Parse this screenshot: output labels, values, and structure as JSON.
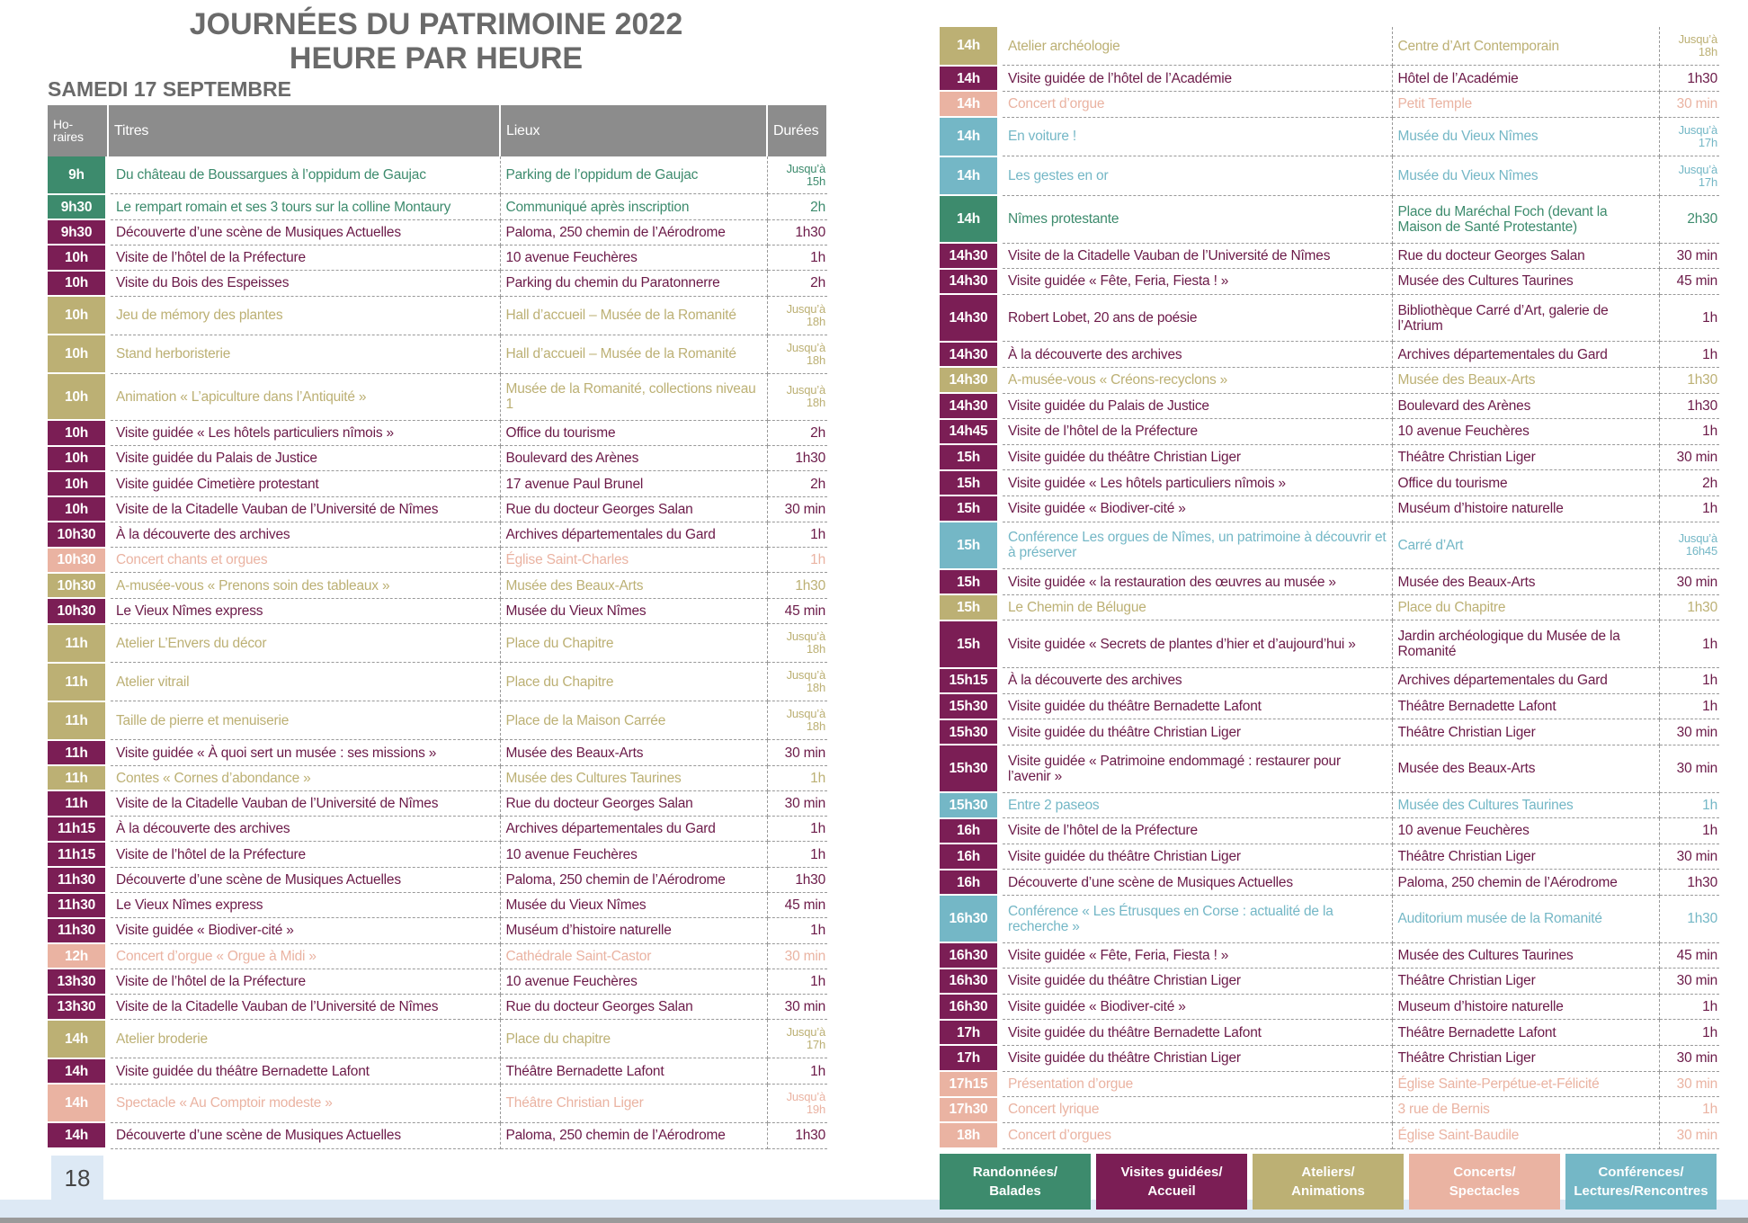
{
  "header": {
    "title": [
      "JOURNÉES DU PATRIMOINE 2022",
      "HEURE PAR HEURE"
    ],
    "subtitle": "SAMEDI 17 SEPTEMBRE",
    "page": "18"
  },
  "columns": [
    "Ho-raires",
    "Titres",
    "Lieux",
    "Durées"
  ],
  "left": {
    "rows": [
      [
        "9h",
        "Du château de Boussargues à l’oppidum de Gaujac",
        "Parking de l’oppidum de Gaujac",
        "Jusqu’à 15h",
        "#3d8b6d"
      ],
      [
        "9h30",
        "Le rempart romain et ses 3 tours sur la colline Montaury",
        "Communiqué après inscription",
        "2h",
        "#3d8b6d"
      ],
      [
        "9h30",
        "Découverte d’une scène de Musiques Actuelles",
        "Paloma, 250 chemin de l’Aérodrome",
        "1h30",
        "#7b1e55"
      ],
      [
        "10h",
        "Visite de l’hôtel de la Préfecture",
        "10 avenue Feuchères",
        "1h",
        "#7b1e55"
      ],
      [
        "10h",
        "Visite du Bois des Espeisses",
        "Parking du chemin du Paratonnerre",
        "2h",
        "#7b1e55"
      ],
      [
        "10h",
        "Jeu de mémory des plantes",
        "Hall d’accueil – Musée de la Romanité",
        "Jusqu’à 18h",
        "#bcb074"
      ],
      [
        "10h",
        "Stand herboristerie",
        "Hall d’accueil – Musée de la Romanité",
        "Jusqu’à 18h",
        "#bcb074"
      ],
      [
        "10h",
        "Animation « L’apiculture dans l’Antiquité »",
        "Musée de la Romanité, collections niveau 1",
        "Jusqu’à 18h",
        "#bcb074"
      ],
      [
        "10h",
        "Visite guidée « Les hôtels particuliers nîmois »",
        "Office du tourisme",
        "2h",
        "#7b1e55"
      ],
      [
        "10h",
        "Visite guidée du Palais de Justice",
        "Boulevard des Arènes",
        "1h30",
        "#7b1e55"
      ],
      [
        "10h",
        "Visite guidée Cimetière protestant",
        "17 avenue Paul Brunel",
        "2h",
        "#7b1e55"
      ],
      [
        "10h",
        "Visite de la Citadelle Vauban de l’Université de Nîmes",
        "Rue du docteur Georges Salan",
        "30 min",
        "#7b1e55"
      ],
      [
        "10h30",
        "À la découverte des archives",
        "Archives départementales du Gard",
        "1h",
        "#7b1e55"
      ],
      [
        "10h30",
        "Concert chants et orgues",
        "Église Saint-Charles",
        "1h",
        "#eab3a2"
      ],
      [
        "10h30",
        "A-musée-vous « Prenons soin des tableaux »",
        "Musée des Beaux-Arts",
        "1h30",
        "#bcb074"
      ],
      [
        "10h30",
        "Le Vieux Nîmes express",
        "Musée du Vieux Nîmes",
        "45 min",
        "#7b1e55"
      ],
      [
        "11h",
        "Atelier L’Envers du décor",
        "Place du Chapitre",
        "Jusqu’à 18h",
        "#bcb074"
      ],
      [
        "11h",
        "Atelier vitrail",
        "Place du Chapitre",
        "Jusqu’à 18h",
        "#bcb074"
      ],
      [
        "11h",
        "Taille de pierre et menuiserie",
        "Place de la Maison Carrée",
        "Jusqu’à 18h",
        "#bcb074"
      ],
      [
        "11h",
        "Visite guidée « À quoi sert un musée : ses missions »",
        "Musée des Beaux-Arts",
        "30 min",
        "#7b1e55"
      ],
      [
        "11h",
        "Contes « Cornes d’abondance »",
        "Musée des Cultures Taurines",
        "1h",
        "#bcb074"
      ],
      [
        "11h",
        "Visite de la Citadelle Vauban de l’Université de Nîmes",
        "Rue du docteur Georges Salan",
        "30 min",
        "#7b1e55"
      ],
      [
        "11h15",
        "À la découverte des archives",
        "Archives départementales du Gard",
        "1h",
        "#7b1e55"
      ],
      [
        "11h15",
        "Visite de l’hôtel de la Préfecture",
        "10 avenue Feuchères",
        "1h",
        "#7b1e55"
      ],
      [
        "11h30",
        "Découverte d’une scène de Musiques Actuelles",
        "Paloma, 250 chemin de l’Aérodrome",
        "1h30",
        "#7b1e55"
      ],
      [
        "11h30",
        "Le Vieux Nîmes express",
        "Musée du Vieux Nîmes",
        "45 min",
        "#7b1e55"
      ],
      [
        "11h30",
        "Visite guidée « Biodiver-cité »",
        "Muséum d’histoire naturelle",
        "1h",
        "#7b1e55"
      ],
      [
        "12h",
        "Concert d’orgue « Orgue à Midi »",
        "Cathédrale Saint-Castor",
        "30 min",
        "#eab3a2"
      ],
      [
        "13h30",
        "Visite de l’hôtel de la Préfecture",
        "10 avenue Feuchères",
        "1h",
        "#7b1e55"
      ],
      [
        "13h30",
        "Visite de la Citadelle Vauban de l’Université de Nîmes",
        "Rue du docteur Georges Salan",
        "30 min",
        "#7b1e55"
      ],
      [
        "14h",
        "Atelier broderie",
        "Place du chapitre",
        "Jusqu’à 17h",
        "#bcb074"
      ],
      [
        "14h",
        "Visite guidée du théâtre Bernadette Lafont",
        "Théâtre Bernadette Lafont",
        "1h",
        "#7b1e55"
      ],
      [
        "14h",
        "Spectacle « Au Comptoir modeste »",
        "Théâtre Christian Liger",
        "Jusqu’à 19h",
        "#eab3a2"
      ],
      [
        "14h",
        "Découverte d’une scène de Musiques Actuelles",
        "Paloma, 250 chemin de l’Aérodrome",
        "1h30",
        "#7b1e55"
      ]
    ]
  },
  "right": {
    "rows": [
      [
        "14h",
        "Atelier archéologie",
        "Centre d’Art Contemporain",
        "Jusqu’à 18h",
        "#bcb074"
      ],
      [
        "14h",
        "Visite guidée de l’hôtel de l’Académie",
        "Hôtel de l’Académie",
        "1h30",
        "#7b1e55"
      ],
      [
        "14h",
        "Concert d’orgue",
        "Petit Temple",
        "30 min",
        "#eab3a2"
      ],
      [
        "14h",
        "En voiture !",
        "Musée du Vieux Nîmes",
        "Jusqu’à 17h",
        "#74b7c6"
      ],
      [
        "14h",
        "Les gestes en or",
        "Musée du Vieux Nîmes",
        "Jusqu’à 17h",
        "#74b7c6"
      ],
      [
        "14h",
        "Nîmes protestante",
        "Place du Maréchal Foch (devant la Maison de Santé Protestante)",
        "2h30",
        "#3d8b6d"
      ],
      [
        "14h30",
        "Visite de la Citadelle Vauban de l’Université de Nîmes",
        "Rue du docteur Georges Salan",
        "30 min",
        "#7b1e55"
      ],
      [
        "14h30",
        "Visite guidée « Fête, Feria, Fiesta ! »",
        "Musée des Cultures Taurines",
        "45 min",
        "#7b1e55"
      ],
      [
        "14h30",
        "Robert Lobet, 20 ans de poésie",
        "Bibliothèque Carré d’Art, galerie de l’Atrium",
        "1h",
        "#7b1e55"
      ],
      [
        "14h30",
        "À la découverte des archives",
        "Archives départementales du Gard",
        "1h",
        "#7b1e55"
      ],
      [
        "14h30",
        "A-musée-vous « Créons-recyclons »",
        "Musée des Beaux-Arts",
        "1h30",
        "#bcb074"
      ],
      [
        "14h30",
        "Visite guidée du Palais de Justice",
        "Boulevard des Arènes",
        "1h30",
        "#7b1e55"
      ],
      [
        "14h45",
        "Visite de l’hôtel de la Préfecture",
        "10 avenue Feuchères",
        "1h",
        "#7b1e55"
      ],
      [
        "15h",
        "Visite guidée du théâtre Christian Liger",
        "Théâtre Christian Liger",
        "30 min",
        "#7b1e55"
      ],
      [
        "15h",
        "Visite guidée « Les hôtels particuliers nîmois »",
        "Office du tourisme",
        "2h",
        "#7b1e55"
      ],
      [
        "15h",
        "Visite guidée « Biodiver-cité »",
        "Muséum d’histoire naturelle",
        "1h",
        "#7b1e55"
      ],
      [
        "15h",
        "Conférence Les orgues de Nîmes, un patrimoine à découvrir et à préserver",
        "Carré d’Art",
        "Jusqu’à 16h45",
        "#74b7c6"
      ],
      [
        "15h",
        "Visite guidée « la restauration des œuvres au musée »",
        "Musée des Beaux-Arts",
        "30 min",
        "#7b1e55"
      ],
      [
        "15h",
        "Le Chemin de Bélugue",
        "Place du Chapitre",
        "1h30",
        "#bcb074"
      ],
      [
        "15h",
        "Visite guidée « Secrets de plantes d’hier et d’aujourd’hui »",
        "Jardin archéologique du Musée de la Romanité",
        "1h",
        "#7b1e55"
      ],
      [
        "15h15",
        "À la découverte des archives",
        "Archives départementales du Gard",
        "1h",
        "#7b1e55"
      ],
      [
        "15h30",
        "Visite guidée du théâtre Bernadette Lafont",
        "Théâtre Bernadette Lafont",
        "1h",
        "#7b1e55"
      ],
      [
        "15h30",
        "Visite guidée du théâtre Christian Liger",
        "Théâtre Christian Liger",
        "30 min",
        "#7b1e55"
      ],
      [
        "15h30",
        "Visite guidée « Patrimoine endommagé : restaurer pour l’avenir »",
        "Musée des Beaux-Arts",
        "30 min",
        "#7b1e55"
      ],
      [
        "15h30",
        "Entre 2 paseos",
        "Musée des Cultures Taurines",
        "1h",
        "#74b7c6"
      ],
      [
        "16h",
        "Visite de l’hôtel de la Préfecture",
        "10 avenue Feuchères",
        "1h",
        "#7b1e55"
      ],
      [
        "16h",
        "Visite guidée du théâtre Christian Liger",
        "Théâtre Christian Liger",
        "30 min",
        "#7b1e55"
      ],
      [
        "16h",
        "Découverte d’une scène de Musiques Actuelles",
        "Paloma, 250 chemin de l’Aérodrome",
        "1h30",
        "#7b1e55"
      ],
      [
        "16h30",
        "Conférence « Les Étrusques en Corse : actualité de la recherche »",
        "Auditorium musée de la Romanité",
        "1h30",
        "#74b7c6"
      ],
      [
        "16h30",
        "Visite guidée « Fête, Feria, Fiesta ! »",
        "Musée des Cultures Taurines",
        "45 min",
        "#7b1e55"
      ],
      [
        "16h30",
        "Visite guidée du théâtre Christian Liger",
        "Théâtre Christian Liger",
        "30 min",
        "#7b1e55"
      ],
      [
        "16h30",
        "Visite guidée « Biodiver-cité »",
        "Museum d’histoire naturelle",
        "1h",
        "#7b1e55"
      ],
      [
        "17h",
        "Visite guidée du théâtre Bernadette Lafont",
        "Théâtre Bernadette Lafont",
        "1h",
        "#7b1e55"
      ],
      [
        "17h",
        "Visite guidée du théâtre Christian Liger",
        "Théâtre Christian Liger",
        "30 min",
        "#7b1e55"
      ],
      [
        "17h15",
        "Présentation d’orgue",
        "Église Sainte-Perpétue-et-Félicité",
        "30 min",
        "#eab3a2"
      ],
      [
        "17h30",
        "Concert lyrique",
        "3 rue de Bernis",
        "1h",
        "#eab3a2"
      ],
      [
        "18h",
        "Concert d’orgues",
        "Église Saint-Baudile",
        "30 min",
        "#eab3a2"
      ]
    ]
  },
  "legend": [
    [
      "Randonnées/\nBalades",
      "#3d8b6d"
    ],
    [
      "Visites guidées/\nAccueil",
      "#7b1e55"
    ],
    [
      "Ateliers/\nAnimations",
      "#bcb074"
    ],
    [
      "Concerts/\nSpectacles",
      "#eab3a2"
    ],
    [
      "Conférences/\nLectures/Rencontres",
      "#74b7c6"
    ]
  ]
}
